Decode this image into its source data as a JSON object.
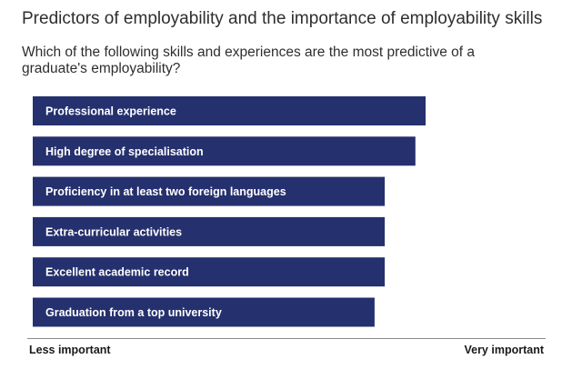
{
  "title": "Predictors of employability and the importance of employability skills",
  "subtitle": "Which of the following skills and experiences are the most predictive of a graduate's employability?",
  "colors": {
    "bar": "#25306e",
    "axis": "#8a8a8a"
  },
  "chart_data": {
    "type": "bar",
    "orientation": "horizontal",
    "title": "Predictors of employability and the importance of employability skills",
    "subtitle": "Which of the following skills and experiences are the most predictive of a graduate's employability?",
    "categories": [
      "Professional experience",
      "High degree of specialisation",
      "Proficiency in at least two foreign languages",
      "Extra-curricular activities",
      "Excellent academic record",
      "Graduation from a top university"
    ],
    "values": [
      77,
      75,
      69,
      69,
      69,
      67
    ],
    "xlim": [
      0,
      100
    ],
    "x_min_label": "Less important",
    "x_max_label": "Very important",
    "grid": false
  }
}
